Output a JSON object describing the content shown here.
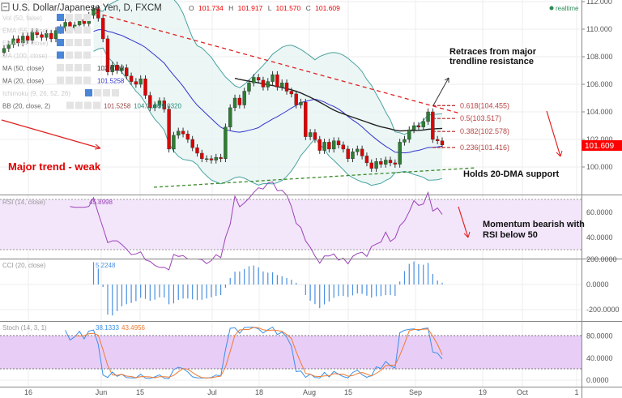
{
  "header": {
    "title": "U.S. Dollar/Japanese Yen, D, FXCM",
    "o_label": "O",
    "o": "101.734",
    "h_label": "H",
    "h": "101.917",
    "l_label": "L",
    "l": "101.570",
    "c_label": "C",
    "c": "101.609",
    "realtime": "realtime"
  },
  "legend": [
    {
      "label": "Vol (50, false)",
      "value": ""
    },
    {
      "label": "EMA (55, close)",
      "value": ""
    },
    {
      "label": "EMA (34, close)",
      "value": ""
    },
    {
      "label": "MA (100, close)",
      "value": ""
    },
    {
      "label": "MA (50, close)",
      "value": "102.6182"
    },
    {
      "label": "MA (20, close)",
      "value": "101.5258"
    },
    {
      "label": "Ichimoku (9, 26, 52, 26)",
      "value": ""
    },
    {
      "label": "BB (20, close, 2)",
      "value": "101.5258",
      "value2": "104.0196",
      "value3": "99.0320"
    }
  ],
  "annotations": {
    "retrace_1": "Retraces from major",
    "retrace_2": "trendline resistance",
    "holds": "Holds 20-DMA support",
    "major_trend": "Major trend - weak",
    "momentum_1": "Momentum bearish with",
    "momentum_2": "RSI below 50"
  },
  "fib_levels": [
    {
      "label": "0.618(104.455)",
      "price": 104.455
    },
    {
      "label": "0.5(103.517)",
      "price": 103.517
    },
    {
      "label": "0.382(102.578)",
      "price": 102.578
    },
    {
      "label": "0.236(101.416)",
      "price": 101.416
    }
  ],
  "price_tag": "101.609",
  "colors": {
    "up": "#2e7d32",
    "down": "#e00000",
    "ma50": "#222222",
    "ma20": "#3333cc",
    "bb": "#4aa3a0",
    "rsi": "#9c42b8",
    "cci": "#4a8fe0",
    "stoch_k": "#3d8fe8",
    "stoch_d": "#f07a30"
  },
  "chart_data": {
    "type": "candlestick",
    "title": "U.S. Dollar/Japanese Yen, D, FXCM",
    "ylim": [
      98.9,
      112
    ],
    "yticks": [
      "112.000",
      "110.000",
      "108.000",
      "106.000",
      "104.000",
      "102.000",
      "100.000"
    ],
    "xticks": [
      "16",
      "Jun",
      "15",
      "Jul",
      "18",
      "Aug",
      "15",
      "Sep",
      "19",
      "Oct",
      "1"
    ],
    "closes": [
      108.6,
      108.9,
      109.3,
      109.0,
      109.5,
      109.2,
      109.8,
      109.6,
      109.4,
      109.7,
      109.3,
      109.9,
      110.1,
      110.5,
      110.1,
      110.3,
      110.7,
      110.4,
      111.0,
      111.5,
      110.8,
      109.3,
      106.9,
      107.4,
      107.0,
      107.2,
      106.6,
      106.2,
      106.0,
      106.4,
      105.2,
      104.3,
      104.5,
      104.8,
      104.2,
      101.3,
      102.3,
      102.6,
      102.4,
      102.0,
      101.4,
      101.0,
      100.6,
      100.6,
      100.5,
      100.7,
      100.6,
      102.9,
      104.3,
      105.0,
      104.5,
      105.5,
      106.1,
      106.5,
      106.3,
      105.8,
      106.2,
      106.7,
      105.8,
      106.1,
      105.5,
      105.3,
      104.5,
      104.7,
      102.2,
      102.5,
      102.0,
      101.2,
      101.8,
      101.3,
      101.9,
      101.6,
      101.3,
      100.6,
      101.1,
      101.3,
      100.8,
      100.3,
      99.9,
      100.4,
      100.2,
      100.5,
      100.3,
      100.2,
      101.8,
      102.0,
      102.7,
      103.0,
      102.9,
      103.3,
      104.0,
      102.0,
      101.9,
      101.6
    ],
    "first_open": 108.3,
    "indicators": {
      "rsi": {
        "label": "RSI (14, close)",
        "value": "45.8998",
        "yticks": [
          "60.0000",
          "40.0000"
        ],
        "bands": [
          70,
          30
        ]
      },
      "cci": {
        "label": "CCI (20, close)",
        "value": "5.2248",
        "yticks": [
          "200.0000",
          "0.0000",
          "-200.0000"
        ]
      },
      "stoch": {
        "label": "Stoch (14, 3, 1)",
        "k": "38.1333",
        "d": "43.4956",
        "yticks": [
          "80.0000",
          "40.0000",
          "0.0000"
        ],
        "bands": [
          80,
          20
        ]
      }
    }
  }
}
